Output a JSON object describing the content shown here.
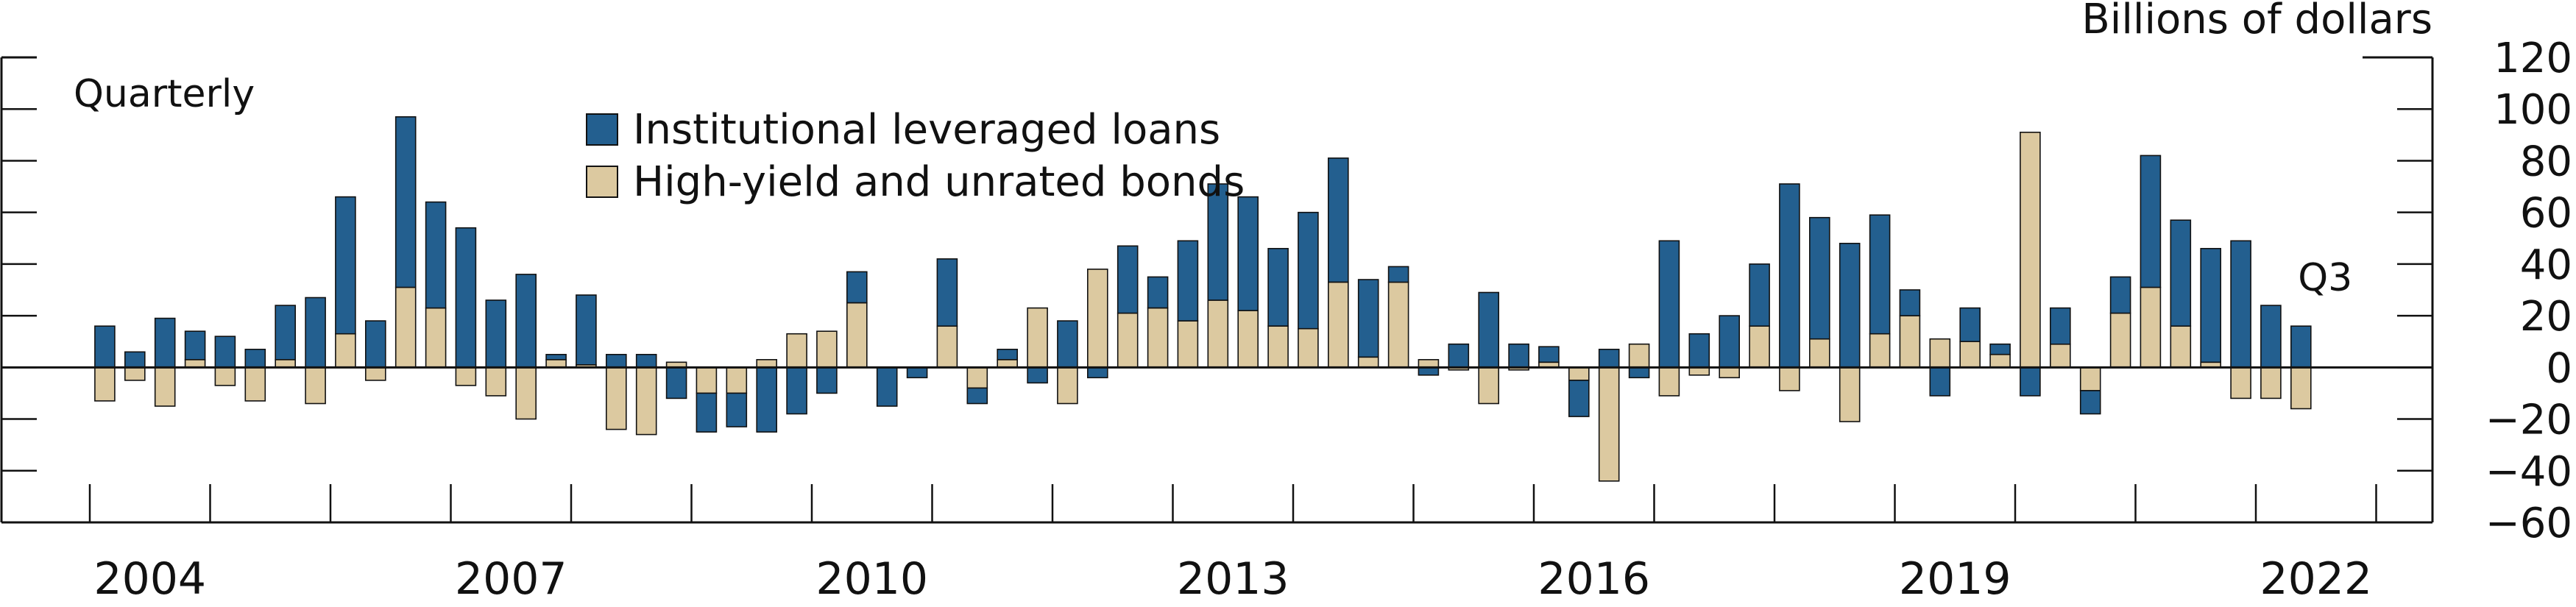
{
  "chart_data": {
    "type": "bar",
    "stacked": true,
    "frequency_label": "Quarterly",
    "ylabel": "Billions of dollars",
    "ylim": [
      -60,
      120
    ],
    "yticks": [
      -60,
      -40,
      -20,
      0,
      20,
      40,
      60,
      80,
      100,
      120
    ],
    "x_start": 2004.0,
    "x_end": 2023.5,
    "xtick_labels": [
      "2004",
      "2007",
      "2010",
      "2013",
      "2016",
      "2019",
      "2022"
    ],
    "annotation": "Q3",
    "legend_position": "top-center",
    "colors": {
      "loans": "#235f8f",
      "bonds": "#dcc9a0"
    },
    "categories": [
      "2004 Q1",
      "2004 Q2",
      "2004 Q3",
      "2004 Q4",
      "2005 Q1",
      "2005 Q2",
      "2005 Q3",
      "2005 Q4",
      "2006 Q1",
      "2006 Q2",
      "2006 Q3",
      "2006 Q4",
      "2007 Q1",
      "2007 Q2",
      "2007 Q3",
      "2007 Q4",
      "2008 Q1",
      "2008 Q2",
      "2008 Q3",
      "2008 Q4",
      "2009 Q1",
      "2009 Q2",
      "2009 Q3",
      "2009 Q4",
      "2010 Q1",
      "2010 Q2",
      "2010 Q3",
      "2010 Q4",
      "2011 Q1",
      "2011 Q2",
      "2011 Q3",
      "2011 Q4",
      "2012 Q1",
      "2012 Q2",
      "2012 Q3",
      "2012 Q4",
      "2013 Q1",
      "2013 Q2",
      "2013 Q3",
      "2013 Q4",
      "2014 Q1",
      "2014 Q2",
      "2014 Q3",
      "2014 Q4",
      "2015 Q1",
      "2015 Q2",
      "2015 Q3",
      "2015 Q4",
      "2016 Q1",
      "2016 Q2",
      "2016 Q3",
      "2016 Q4",
      "2017 Q1",
      "2017 Q2",
      "2017 Q3",
      "2017 Q4",
      "2018 Q1",
      "2018 Q2",
      "2018 Q3",
      "2018 Q4",
      "2019 Q1",
      "2019 Q2",
      "2019 Q3",
      "2019 Q4",
      "2020 Q1",
      "2020 Q2",
      "2020 Q3",
      "2020 Q4",
      "2021 Q1",
      "2021 Q2",
      "2021 Q3",
      "2021 Q4",
      "2022 Q1",
      "2022 Q2",
      "2022 Q3"
    ],
    "series": [
      {
        "name": "Institutional leveraged loans",
        "key": "loans",
        "values": [
          16,
          6,
          19,
          11,
          12,
          7,
          21,
          27,
          53,
          18,
          66,
          41,
          54,
          26,
          36,
          2,
          27,
          5,
          5,
          -12,
          -15,
          -13,
          -25,
          -18,
          -10,
          12,
          -15,
          -4,
          26,
          -6,
          4,
          -6,
          18,
          -4,
          26,
          12,
          31,
          45,
          44,
          30,
          45,
          48,
          30,
          6,
          -3,
          9,
          29,
          9,
          6,
          -14,
          7,
          -4,
          49,
          13,
          20,
          24,
          71,
          47,
          48,
          46,
          10,
          -11,
          13,
          4,
          -11,
          14,
          -9,
          14,
          51,
          41,
          44,
          49,
          24,
          16,
          0
        ],
        "name_key": "loans"
      },
      {
        "name": "High-yield and unrated bonds",
        "key": "bonds",
        "values": [
          -13,
          -5,
          -15,
          3,
          -7,
          -13,
          3,
          -14,
          13,
          -5,
          31,
          23,
          -7,
          -11,
          -20,
          3,
          1,
          -24,
          -26,
          2,
          -10,
          -10,
          3,
          13,
          14,
          25,
          0,
          0,
          16,
          -8,
          3,
          23,
          -14,
          38,
          21,
          23,
          18,
          26,
          22,
          16,
          15,
          33,
          4,
          33,
          3,
          -1,
          -14,
          -1,
          2,
          -5,
          -44,
          9,
          -11,
          -3,
          -4,
          16,
          -9,
          11,
          -21,
          13,
          20,
          11,
          10,
          5,
          91,
          9,
          -9,
          21,
          31,
          16,
          2,
          -12,
          -12,
          -16,
          0
        ],
        "name_key": "bonds"
      }
    ]
  }
}
